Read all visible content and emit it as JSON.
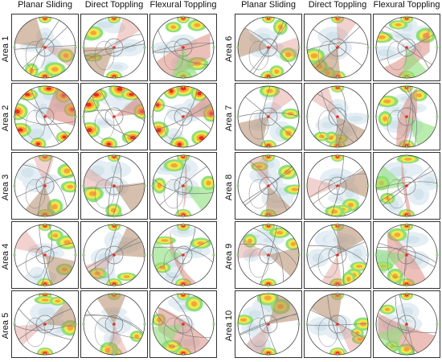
{
  "figure": {
    "columns": [
      "Planar Sliding",
      "Direct Toppling",
      "Flexural Toppling"
    ],
    "areas_left": [
      "Area 1",
      "Area 2",
      "Area 3",
      "Area 4",
      "Area 5"
    ],
    "areas_right": [
      "Area 6",
      "Area 7",
      "Area 8",
      "Area 9",
      "Area 10"
    ],
    "palette": {
      "pole_peak": "#ee2a1e",
      "pole_high": "#f5a43a",
      "pole_mid": "#f2e84a",
      "pole_low": "#8ddf7a",
      "pole_faint": "#cfeaf3",
      "critical_zone": "#d97f72",
      "critical_zone_alt": "#b58a6a",
      "great_circle": "#7d7d7d",
      "frame": "#333333"
    },
    "panel_style": {
      "Area 1": {
        "Planar Sliding": "pie",
        "Direct Toppling": "pie",
        "Flexural Toppling": "band"
      },
      "Area 2": {
        "Planar Sliding": "rim",
        "Direct Toppling": "rim",
        "Flexural Toppling": "rim"
      },
      "Area 3": {
        "Planar Sliding": "pie",
        "Direct Toppling": "pie",
        "Flexural Toppling": "band"
      },
      "Area 4": {
        "Planar Sliding": "pie",
        "Direct Toppling": "pie",
        "Flexural Toppling": "band"
      },
      "Area 5": {
        "Planar Sliding": "pie",
        "Direct Toppling": "pie",
        "Flexural Toppling": "band"
      },
      "Area 6": {
        "Planar Sliding": "pie",
        "Direct Toppling": "pie",
        "Flexural Toppling": "band"
      },
      "Area 7": {
        "Planar Sliding": "pie",
        "Direct Toppling": "pie",
        "Flexural Toppling": "band"
      },
      "Area 8": {
        "Planar Sliding": "pie",
        "Direct Toppling": "pie",
        "Flexural Toppling": "band"
      },
      "Area 9": {
        "Planar Sliding": "pie",
        "Direct Toppling": "pie",
        "Flexural Toppling": "band"
      },
      "Area 10": {
        "Planar Sliding": "pie",
        "Direct Toppling": "pie",
        "Flexural Toppling": "band"
      }
    }
  }
}
